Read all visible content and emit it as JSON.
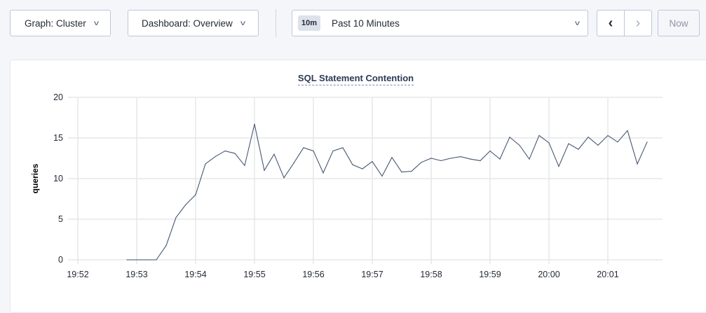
{
  "toolbar": {
    "graph_select": "Graph: Cluster",
    "dashboard_select": "Dashboard: Overview",
    "time_badge": "10m",
    "time_range": "Past 10 Minutes",
    "prev_icon": "chevron-left-icon",
    "next_icon": "chevron-right-icon",
    "now_label": "Now"
  },
  "chart_data": {
    "type": "line",
    "title": "SQL Statement Contention",
    "xlabel": "",
    "ylabel": "queries",
    "ylim": [
      0,
      20
    ],
    "yticks": [
      "0",
      "5",
      "10",
      "15",
      "20"
    ],
    "xticks": [
      "19:52",
      "19:53",
      "19:54",
      "19:55",
      "19:56",
      "19:57",
      "19:58",
      "19:59",
      "20:00",
      "20:01"
    ],
    "grid": true,
    "line_color": "#475872",
    "x": [
      "19:52:50",
      "19:53:00",
      "19:53:10",
      "19:53:20",
      "19:53:30",
      "19:53:40",
      "19:53:50",
      "19:54:00",
      "19:54:10",
      "19:54:20",
      "19:54:30",
      "19:54:40",
      "19:54:50",
      "19:55:00",
      "19:55:10",
      "19:55:20",
      "19:55:30",
      "19:55:40",
      "19:55:50",
      "19:56:00",
      "19:56:10",
      "19:56:20",
      "19:56:30",
      "19:56:40",
      "19:56:50",
      "19:57:00",
      "19:57:10",
      "19:57:20",
      "19:57:30",
      "19:57:40",
      "19:57:50",
      "19:58:00",
      "19:58:10",
      "19:58:20",
      "19:58:30",
      "19:58:40",
      "19:58:50",
      "19:59:00",
      "19:59:10",
      "19:59:20",
      "19:59:30",
      "19:59:40",
      "19:59:50",
      "20:00:00",
      "20:00:10",
      "20:00:20",
      "20:00:30",
      "20:00:40",
      "20:00:50",
      "20:01:00",
      "20:01:10",
      "20:01:20",
      "20:01:30",
      "20:01:40"
    ],
    "values": [
      0,
      0,
      0,
      0,
      1.75,
      5.2,
      6.8,
      8.0,
      11.8,
      12.7,
      13.4,
      13.1,
      11.6,
      16.7,
      11.0,
      13.0,
      10.1,
      11.9,
      13.8,
      13.4,
      10.7,
      13.4,
      13.8,
      11.7,
      11.2,
      12.1,
      10.3,
      12.6,
      10.8,
      10.9,
      12.0,
      12.5,
      12.2,
      12.5,
      12.7,
      12.4,
      12.2,
      13.4,
      12.4,
      15.1,
      14.1,
      12.4,
      15.3,
      14.4,
      11.5,
      14.3,
      13.6,
      15.1,
      14.1,
      15.3,
      14.5,
      15.9,
      11.8,
      14.5
    ]
  }
}
